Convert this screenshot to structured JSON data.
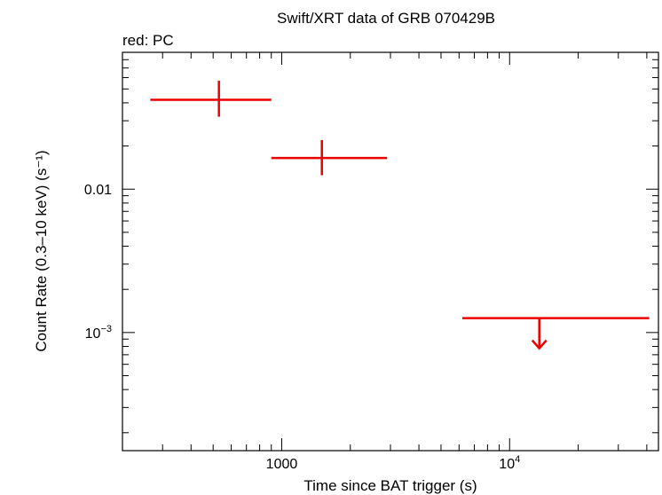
{
  "chart_data": {
    "type": "scatter",
    "title": "Swift/XRT data of GRB 070429B",
    "subtitle": "red: PC",
    "xlabel": "Time since BAT trigger (s)",
    "ylabel": "Count Rate (0.3–10 keV) (s⁻¹)",
    "x_scale": "log",
    "y_scale": "log",
    "xlim": [
      200,
      45000
    ],
    "ylim": [
      0.00015,
      0.09
    ],
    "x_tick_labels": [
      {
        "value": 1000,
        "label": "1000",
        "sup": ""
      },
      {
        "value": 10000,
        "label": "10",
        "sup": "4"
      }
    ],
    "y_tick_labels": [
      {
        "value": 0.01,
        "label": "0.01",
        "sup": ""
      },
      {
        "value": 0.001,
        "label": "10",
        "sup": "−3"
      }
    ],
    "grid": false,
    "color": "#ee0000",
    "series": [
      {
        "points": [
          {
            "x": 530,
            "xlo": 265,
            "xhi": 900,
            "y": 0.042,
            "ylo": 0.032,
            "yhi": 0.057
          },
          {
            "x": 1500,
            "xlo": 900,
            "xhi": 2900,
            "y": 0.0165,
            "ylo": 0.0125,
            "yhi": 0.022
          },
          {
            "x": 13500,
            "xlo": 6200,
            "xhi": 41000,
            "y": 0.00126,
            "upper_limit": true
          }
        ]
      }
    ]
  }
}
